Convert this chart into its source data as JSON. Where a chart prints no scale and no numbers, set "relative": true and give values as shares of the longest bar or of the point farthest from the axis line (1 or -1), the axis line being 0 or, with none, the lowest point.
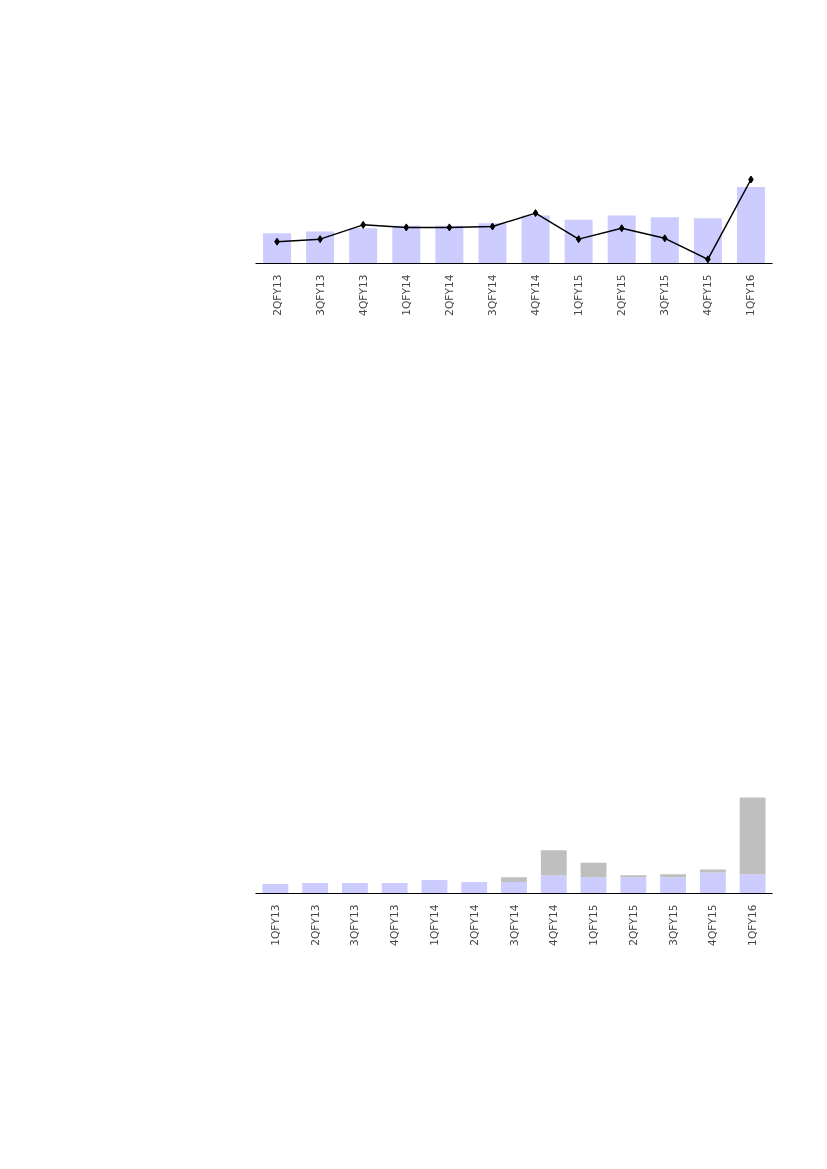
{
  "chart_data": [
    {
      "type": "bar",
      "relative": true,
      "marker": "diamond",
      "categories": [
        "2QFY13",
        "3QFY13",
        "4QFY13",
        "1QFY14",
        "2QFY14",
        "3QFY14",
        "4QFY14",
        "1QFY15",
        "2QFY15",
        "3QFY15",
        "4QFY15",
        "1QFY16"
      ],
      "series": [
        {
          "type": "bar",
          "color": "#ccccff",
          "values": [
            0.36,
            0.38,
            0.42,
            0.45,
            0.45,
            0.48,
            0.57,
            0.52,
            0.57,
            0.55,
            0.54,
            0.91
          ]
        },
        {
          "type": "line",
          "color": "#000000",
          "values": [
            0.26,
            0.29,
            0.46,
            0.43,
            0.43,
            0.44,
            0.6,
            0.29,
            0.42,
            0.3,
            0.05,
            1
          ]
        }
      ]
    },
    {
      "type": "bar",
      "relative": true,
      "stacked": true,
      "categories": [
        "1QFY13",
        "2QFY13",
        "3QFY13",
        "4QFY13",
        "1QFY14",
        "2QFY14",
        "3QFY14",
        "4QFY14",
        "1QFY15",
        "2QFY15",
        "3QFY15",
        "4QFY15",
        "1QFY16"
      ],
      "series": [
        {
          "color": "#ccccff",
          "values": [
            0.1,
            0.11,
            0.11,
            0.11,
            0.14,
            0.12,
            0.12,
            0.19,
            0.17,
            0.17,
            0.17,
            0.22,
            0.2
          ]
        },
        {
          "color": "#bfbfbf",
          "values": [
            0,
            0,
            0,
            0,
            0,
            0,
            0.05,
            0.26,
            0.15,
            0.02,
            0.03,
            0.03,
            0.8
          ]
        }
      ]
    }
  ]
}
